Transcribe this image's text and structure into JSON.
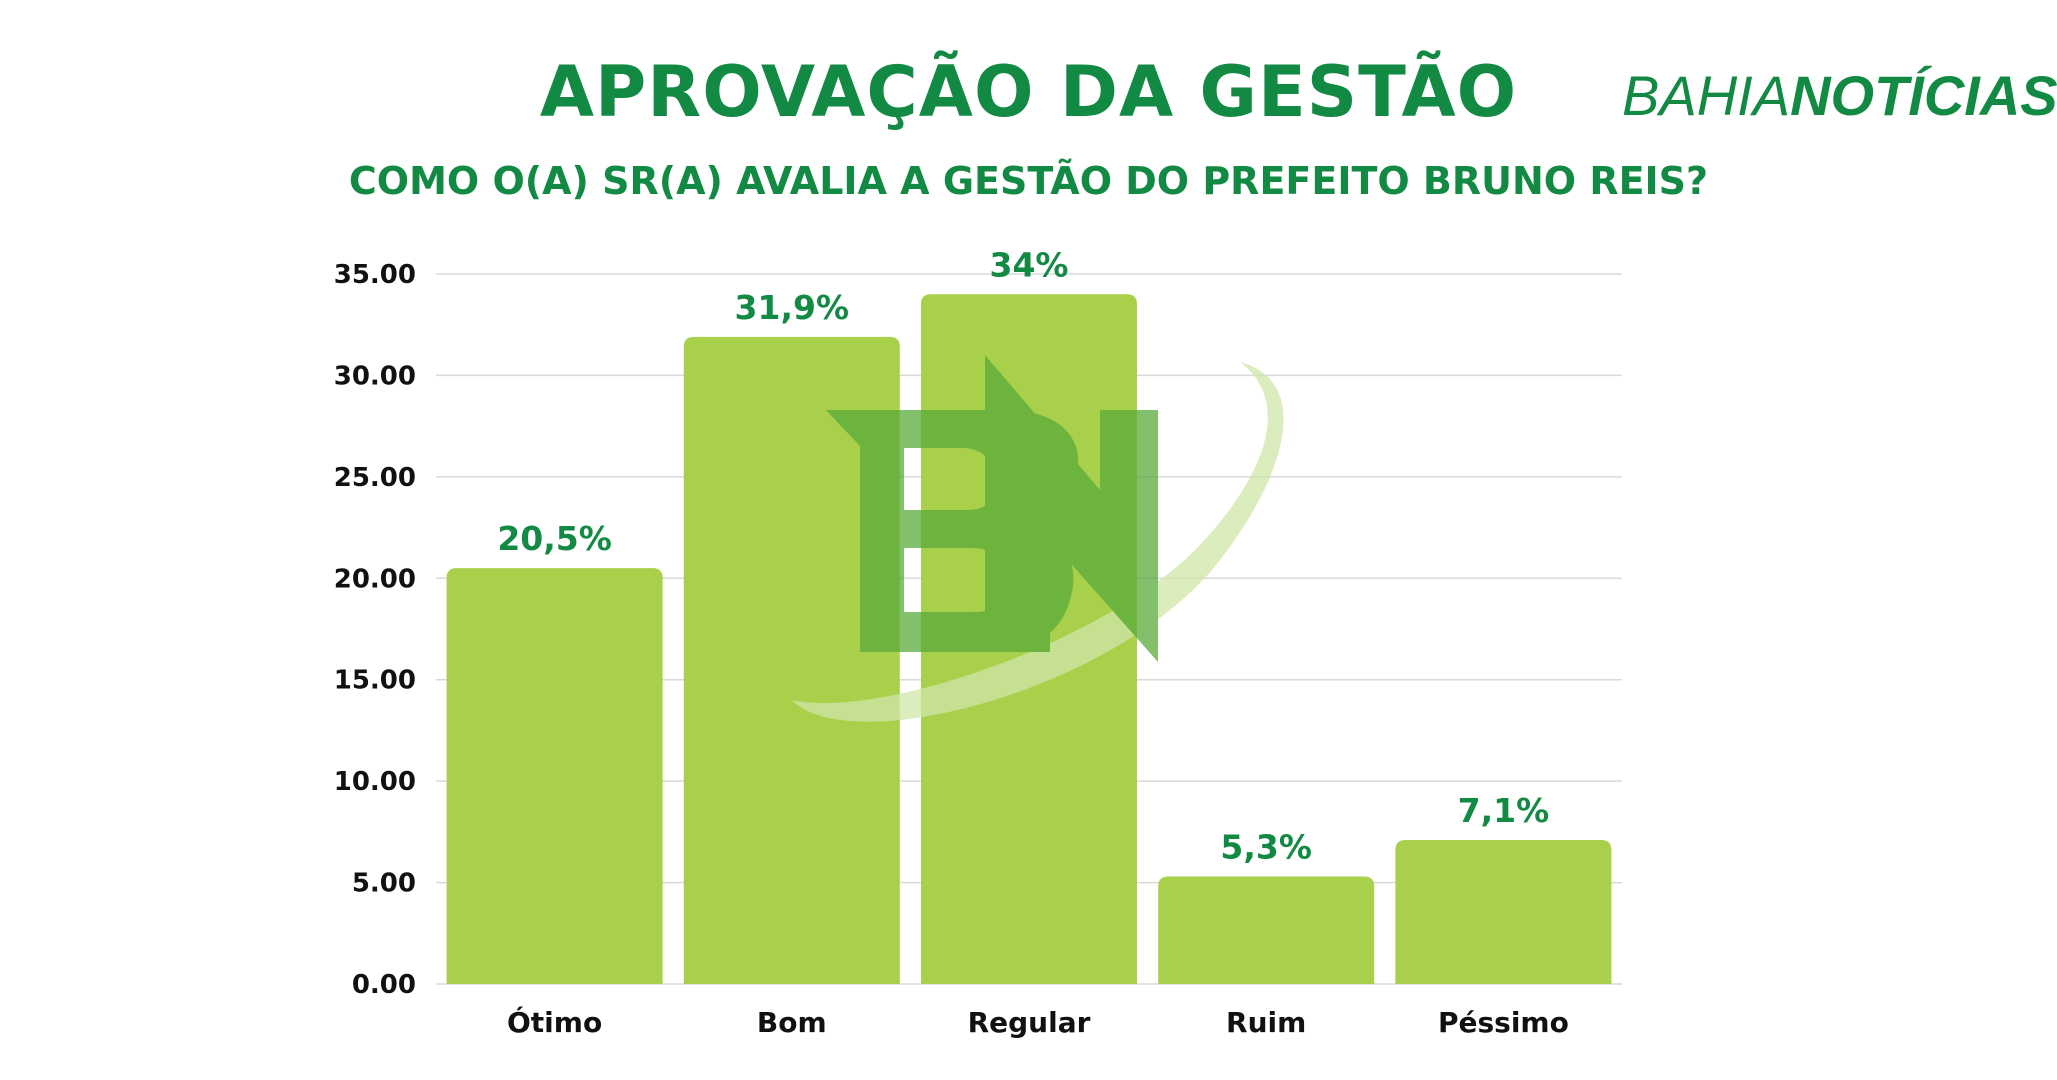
{
  "header": {
    "brand_part1": "BAHIA",
    "brand_part2": "NOTÍCIAS"
  },
  "colors": {
    "accent": "#138a44",
    "bar": "#a8d04a",
    "grid": "#d9d9d9",
    "watermark_dark": "#5aab3c",
    "watermark_light": "#cfe6a8"
  },
  "watermark": {
    "icon": "bn-logo-watermark"
  },
  "chart_data": {
    "type": "bar",
    "title": "APROVAÇÃO DA GESTÃO",
    "subtitle": "COMO O(A) SR(A) AVALIA A GESTÃO DO PREFEITO BRUNO REIS?",
    "categories": [
      "Ótimo",
      "Bom",
      "Regular",
      "Ruim",
      "Péssimo"
    ],
    "values": [
      20.5,
      31.9,
      34,
      5.3,
      7.1
    ],
    "data_labels": [
      "20,5%",
      "31,9%",
      "34%",
      "5,3%",
      "7,1%"
    ],
    "y_ticks": [
      "0.00",
      "5.00",
      "10.00",
      "15.00",
      "20.00",
      "25.00",
      "30.00",
      "35.00"
    ],
    "ylim": [
      0,
      35
    ],
    "grid": true,
    "legend": "none",
    "xlabel": "",
    "ylabel": ""
  }
}
